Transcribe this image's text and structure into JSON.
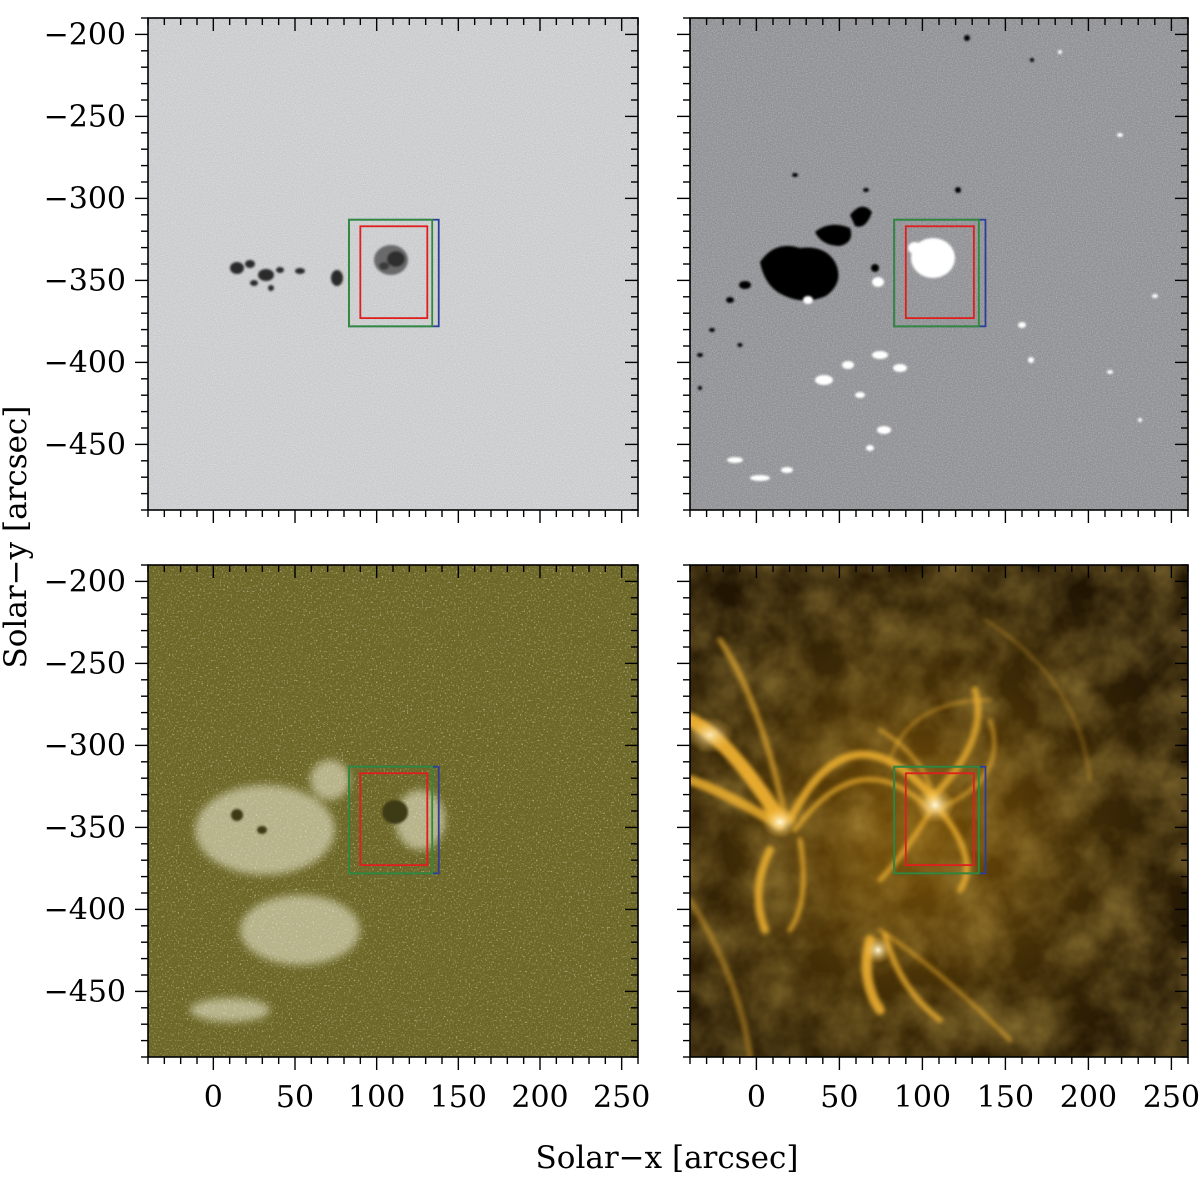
{
  "figure": {
    "x_axis_label": "Solar−x   [arcsec]",
    "y_axis_label": "Solar−y   [arcsec]",
    "x_ticks": [
      {
        "value": 0,
        "label": "0"
      },
      {
        "value": 50,
        "label": "50"
      },
      {
        "value": 100,
        "label": "100"
      },
      {
        "value": 150,
        "label": "150"
      },
      {
        "value": 200,
        "label": "200"
      },
      {
        "value": 250,
        "label": "250"
      }
    ],
    "y_ticks": [
      {
        "value": -200,
        "label": "−200"
      },
      {
        "value": -250,
        "label": "−250"
      },
      {
        "value": -300,
        "label": "−300"
      },
      {
        "value": -350,
        "label": "−350"
      },
      {
        "value": -400,
        "label": "−400"
      },
      {
        "value": -450,
        "label": "−450"
      }
    ],
    "x_range": [
      -40,
      260
    ],
    "y_range": [
      -490,
      -190
    ],
    "box_color_outer": "#2a3f9a",
    "box_color_middle": "#2e8b3a",
    "box_color_inner": "#e01e1e",
    "regions": {
      "outer": {
        "x": [
          83,
          138
        ],
        "y": [
          -378,
          -313
        ]
      },
      "middle": {
        "x": [
          83,
          134
        ],
        "y": [
          -378,
          -313
        ]
      },
      "inner": {
        "x": [
          90,
          131
        ],
        "y": [
          -373,
          -317
        ]
      }
    },
    "panels": [
      {
        "name": "continuum-intensity",
        "colors": {
          "bg": "#c8c9cb",
          "feature": "#2a2a2a"
        }
      },
      {
        "name": "magnetogram",
        "colors": {
          "bg": "#8f9093",
          "positive": "#ffffff",
          "negative": "#000000"
        }
      },
      {
        "name": "chromospheric-image",
        "colors": {
          "bg": "#6b6625",
          "bright": "#ffffff",
          "dark": "#3e3a12"
        }
      },
      {
        "name": "coronal-euv-image",
        "colors": {
          "bg": "#3a2706",
          "loop": "#f5b531",
          "bright": "#fff3c2"
        }
      }
    ]
  }
}
